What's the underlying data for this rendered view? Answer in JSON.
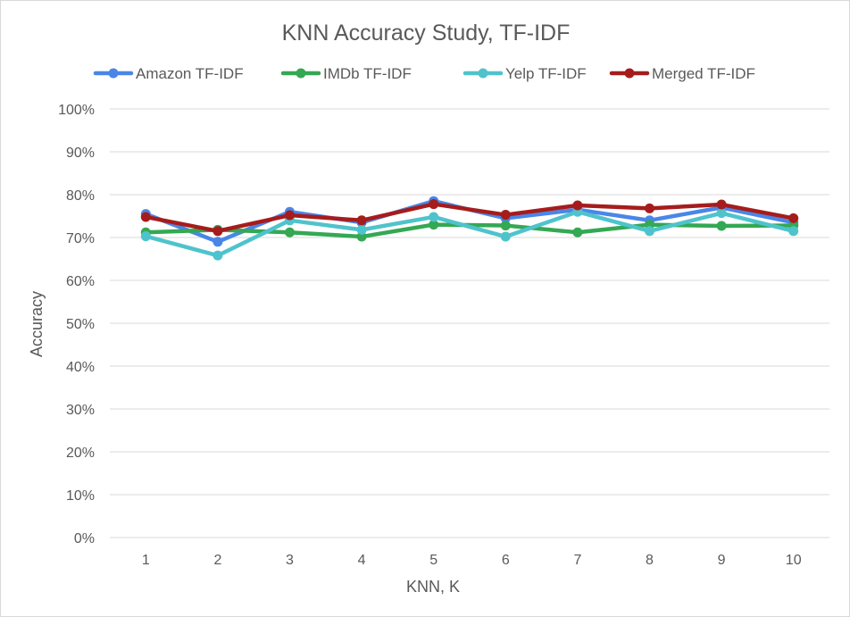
{
  "chart_data": {
    "type": "line",
    "title": "KNN Accuracy Study, TF-IDF",
    "xlabel": "KNN, K",
    "ylabel": "Accuracy",
    "x": [
      1,
      2,
      3,
      4,
      5,
      6,
      7,
      8,
      9,
      10
    ],
    "x_tick_labels": [
      "1",
      "2",
      "3",
      "4",
      "5",
      "6",
      "7",
      "8",
      "9",
      "10"
    ],
    "ylim": [
      0,
      1
    ],
    "y_tick_values": [
      0,
      0.1,
      0.2,
      0.3,
      0.4,
      0.5,
      0.6,
      0.7,
      0.8,
      0.9,
      1.0
    ],
    "y_tick_labels": [
      "0%",
      "10%",
      "20%",
      "30%",
      "40%",
      "50%",
      "60%",
      "70%",
      "80%",
      "90%",
      "100%"
    ],
    "grid": true,
    "legend_position": "top",
    "series": [
      {
        "name": "Amazon TF-IDF",
        "color": "#4a86e8",
        "values": [
          0.755,
          0.69,
          0.76,
          0.735,
          0.785,
          0.745,
          0.765,
          0.74,
          0.77,
          0.735
        ]
      },
      {
        "name": "IMDb TF-IDF",
        "color": "#34a853",
        "values": [
          0.712,
          0.718,
          0.712,
          0.702,
          0.73,
          0.728,
          0.712,
          0.73,
          0.727,
          0.728
        ]
      },
      {
        "name": "Yelp TF-IDF",
        "color": "#4fc3cc",
        "values": [
          0.703,
          0.658,
          0.74,
          0.718,
          0.748,
          0.702,
          0.76,
          0.715,
          0.757,
          0.715
        ]
      },
      {
        "name": "Merged TF-IDF",
        "color": "#a61c1c",
        "values": [
          0.748,
          0.715,
          0.752,
          0.74,
          0.778,
          0.753,
          0.775,
          0.768,
          0.777,
          0.745
        ]
      }
    ]
  }
}
